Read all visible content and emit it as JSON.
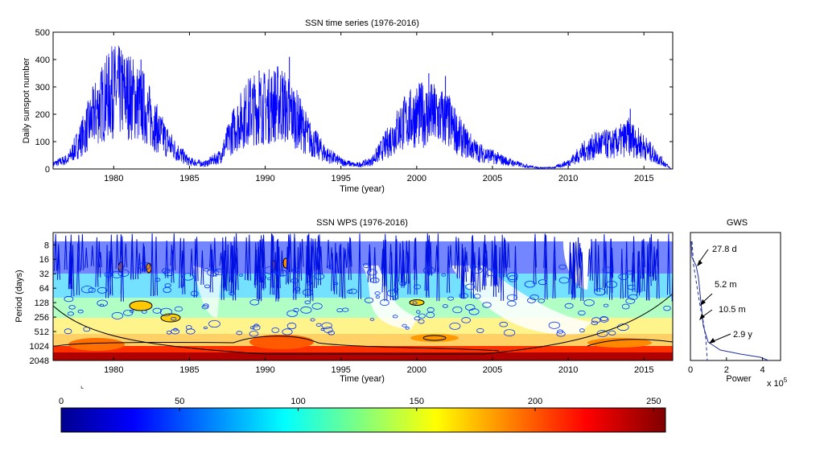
{
  "chart_data": [
    {
      "type": "line",
      "title": "SSN time series (1976-2016)",
      "xlabel": "Time (year)",
      "ylabel": "Daily sunspot number",
      "xlim": [
        1976,
        2016.9
      ],
      "ylim": [
        0,
        500
      ],
      "x_ticks": [
        1980,
        1985,
        1990,
        1995,
        2000,
        2005,
        2010,
        2015
      ],
      "y_ticks": [
        0,
        100,
        200,
        300,
        400,
        500
      ],
      "series": [
        {
          "color": "#0000ff",
          "x": [
            1976,
            1977,
            1978,
            1979,
            1980,
            1981,
            1982,
            1983,
            1984,
            1985,
            1986,
            1987,
            1988,
            1989,
            1990,
            1991,
            1992,
            1993,
            1994,
            1995,
            1996,
            1997,
            1998,
            1999,
            2000,
            2001,
            2002,
            2003,
            2004,
            2005,
            2006,
            2007,
            2008,
            2009,
            2010,
            2011,
            2012,
            2013,
            2014,
            2015,
            2016
          ],
          "envelope": [
            20,
            40,
            140,
            250,
            320,
            300,
            250,
            150,
            80,
            30,
            20,
            50,
            170,
            240,
            250,
            270,
            210,
            120,
            60,
            30,
            15,
            30,
            100,
            180,
            220,
            220,
            200,
            120,
            70,
            50,
            30,
            15,
            5,
            5,
            25,
            70,
            100,
            100,
            130,
            90,
            40
          ],
          "peaks": [
            [
              1979.9,
              430
            ],
            [
              1981.8,
              400
            ],
            [
              1989.6,
              360
            ],
            [
              1991.6,
              410
            ],
            [
              2000.8,
              350
            ],
            [
              2001.9,
              340
            ],
            [
              2014.1,
              220
            ]
          ],
          "amplitude_note": "daily values"
        }
      ]
    },
    {
      "type": "heatmap",
      "title": "SSN WPS (1976-2016)",
      "xlabel": "Time (year)",
      "ylabel": "Period (days)",
      "xlim": [
        1976,
        2016.9
      ],
      "y_scale": "log2",
      "y_ticks": [
        8,
        16,
        32,
        64,
        128,
        256,
        512,
        1024,
        2048
      ],
      "x_ticks": [
        1980,
        1985,
        1990,
        1995,
        2000,
        2005,
        2010,
        2015
      ],
      "colormap": "jet",
      "contours": "filled-lines",
      "cone_of_influence": true
    },
    {
      "type": "line",
      "title": "GWS",
      "xlabel": "Power",
      "xlim": [
        0,
        5
      ],
      "x_ticks": [
        0,
        2,
        4
      ],
      "x_exponent": "x 10",
      "x_exponent_power": "5",
      "annotations": [
        "27.8 d",
        "5.2 m",
        "10.5 m",
        "2.9 y"
      ]
    },
    {
      "type": "colorbar",
      "ticks": [
        0,
        50,
        100,
        150,
        200,
        250
      ],
      "range": [
        0,
        255
      ],
      "colormap": "jet"
    }
  ]
}
